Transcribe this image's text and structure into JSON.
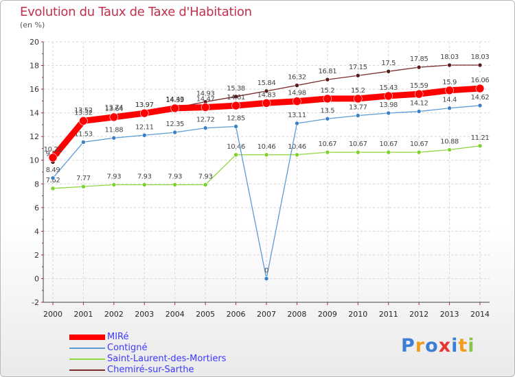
{
  "header": {
    "title": "Evolution du Taux de Taxe d'Habitation",
    "subtitle": "(en %)"
  },
  "brand": {
    "text": "Proxiti",
    "letter_colors": [
      "#3a7fd5",
      "#f29c1e",
      "#3a7fd5",
      "#e8352f",
      "#3a7fd5",
      "#f29c1e",
      "#8bc34a"
    ]
  },
  "chart_data": {
    "type": "line",
    "x": [
      "2000",
      "2001",
      "2002",
      "2003",
      "2004",
      "2005",
      "2006",
      "2007",
      "2008",
      "2009",
      "2010",
      "2011",
      "2012",
      "2013",
      "2014"
    ],
    "ylim": [
      -2,
      20
    ],
    "yticks": [
      "-2",
      "0",
      "2",
      "4",
      "6",
      "8",
      "10",
      "12",
      "14",
      "16",
      "18",
      "20"
    ],
    "grid": true,
    "legend_position": "bottom-left",
    "series": [
      {
        "name": "Chemiré-sur-Sarthe",
        "color": "#7a2b2b",
        "values": [
          9.84,
          13.52,
          13.74,
          13.97,
          14.43,
          14.93,
          15.38,
          15.84,
          16.32,
          16.81,
          17.15,
          17.5,
          17.85,
          18.03,
          18.03
        ],
        "labels": [
          "9.84",
          "13.52",
          "13.74",
          "13.97",
          "14.43",
          "14.93",
          "15.38",
          "15.84",
          "16.32",
          "16.81",
          "17.15",
          "17.5",
          "17.85",
          "18.03",
          "18.03"
        ]
      },
      {
        "name": "Saint-Laurent-des-Mortiers",
        "color": "#8fd63f",
        "values": [
          7.62,
          7.77,
          7.93,
          7.93,
          7.93,
          7.93,
          10.46,
          10.46,
          10.46,
          10.67,
          10.67,
          10.67,
          10.67,
          10.88,
          11.21
        ],
        "labels": [
          "7.62",
          "7.77",
          "7.93",
          "7.93",
          "7.93",
          "7.93",
          "10.46",
          "10.46",
          "10.46",
          "10.67",
          "10.67",
          "10.67",
          "10.67",
          "10.88",
          "11.21"
        ]
      },
      {
        "name": "Contigné",
        "color": "#5b9bd5",
        "values": [
          8.49,
          11.53,
          11.88,
          12.11,
          12.35,
          12.72,
          12.85,
          0,
          13.11,
          13.5,
          13.77,
          13.98,
          14.12,
          14.4,
          14.62
        ],
        "labels": [
          "8.49",
          "11.53",
          "11.88",
          "12.11",
          "12.35",
          "12.72",
          "12.85",
          "0",
          "13.11",
          "13.5",
          "13.77",
          "13.98",
          "14.12",
          "14.4",
          "14.62"
        ]
      },
      {
        "name": "MIRé",
        "color": "#ff0000",
        "values": [
          10.22,
          13.32,
          13.64,
          13.97,
          14.39,
          14.47,
          14.61,
          14.83,
          14.98,
          15.2,
          15.2,
          15.43,
          15.59,
          15.9,
          16.06
        ],
        "labels": [
          "10.22",
          "13.32",
          "13.64",
          "13.97",
          "14.39",
          "14.47",
          "14.61",
          "14.83",
          "14.98",
          "15.2",
          "15.2",
          "15.43",
          "15.59",
          "15.9",
          "16.06"
        ]
      }
    ],
    "legend": [
      "MIRé",
      "Contigné",
      "Saint-Laurent-des-Mortiers",
      "Chemiré-sur-Sarthe"
    ]
  }
}
